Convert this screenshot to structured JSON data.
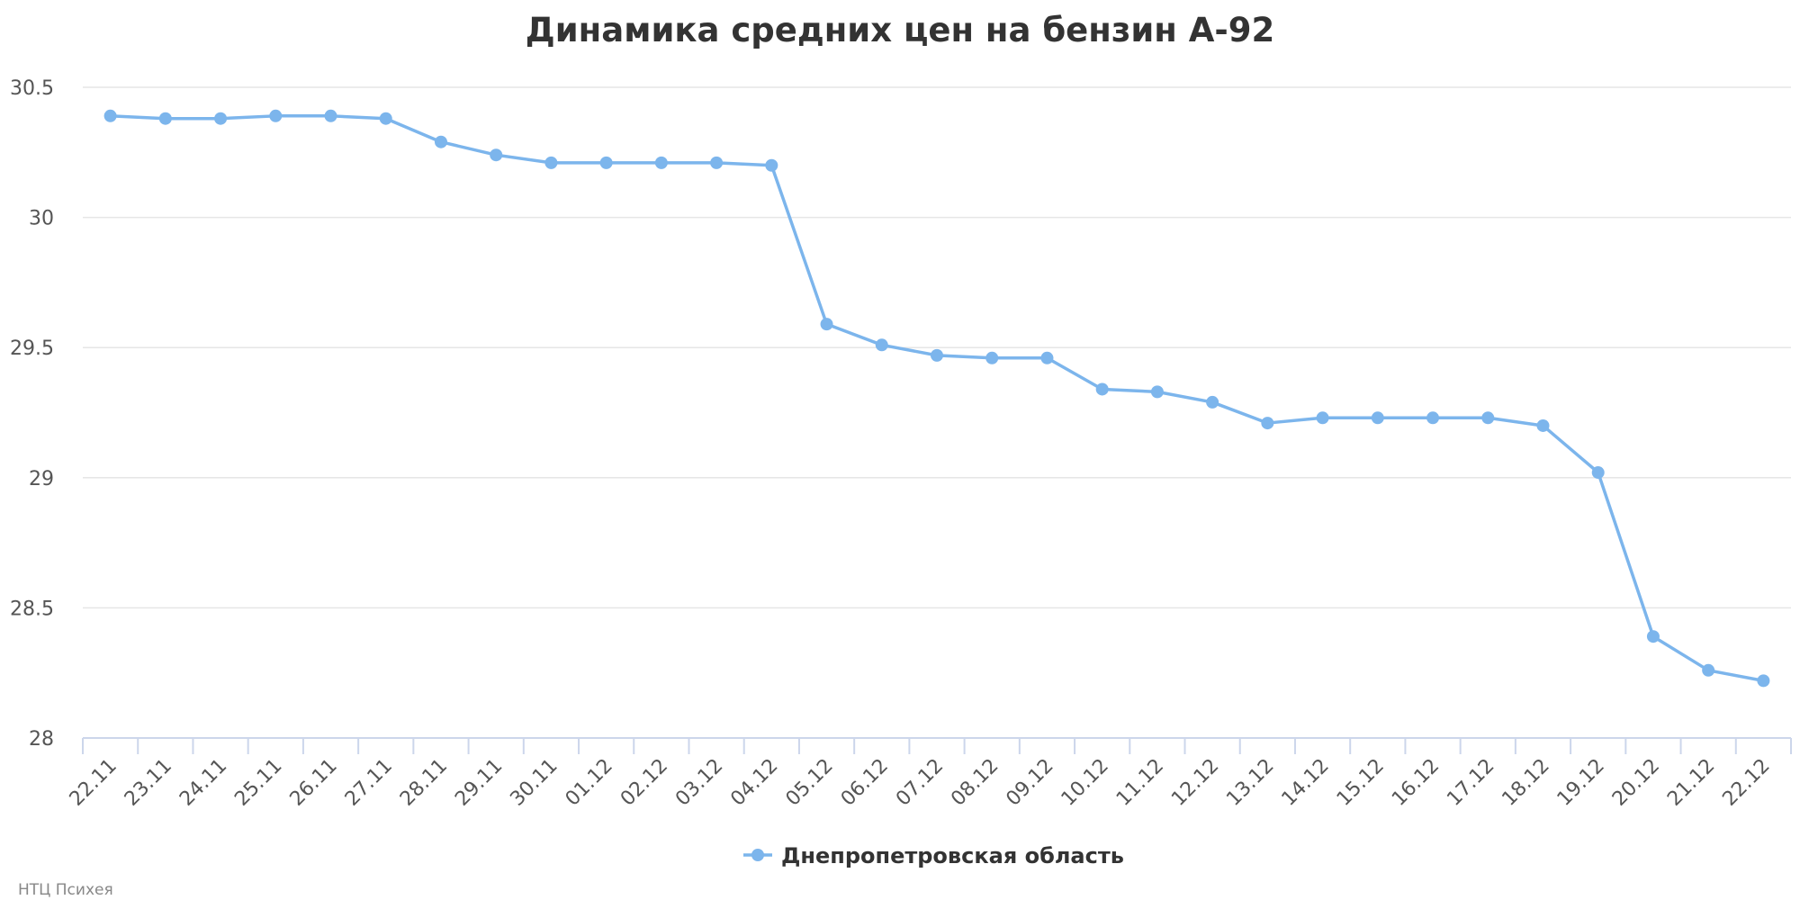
{
  "chart_data": {
    "type": "line",
    "title": "Динамика средних цен на бензин А-92",
    "xlabel": "",
    "ylabel": "",
    "categories": [
      "22.11",
      "23.11",
      "24.11",
      "25.11",
      "26.11",
      "27.11",
      "28.11",
      "29.11",
      "30.11",
      "01.12",
      "02.12",
      "03.12",
      "04.12",
      "05.12",
      "06.12",
      "07.12",
      "08.12",
      "09.12",
      "10.12",
      "11.12",
      "12.12",
      "13.12",
      "14.12",
      "15.12",
      "16.12",
      "17.12",
      "18.12",
      "19.12",
      "20.12",
      "21.12",
      "22.12"
    ],
    "series": [
      {
        "name": "Днепропетровская область",
        "color": "#7cb5ec",
        "values": [
          30.39,
          30.38,
          30.38,
          30.39,
          30.39,
          30.38,
          30.29,
          30.24,
          30.21,
          30.21,
          30.21,
          30.21,
          30.2,
          29.59,
          29.51,
          29.47,
          29.46,
          29.46,
          29.34,
          29.33,
          29.29,
          29.21,
          29.23,
          29.23,
          29.23,
          29.23,
          29.2,
          29.02,
          28.39,
          28.26,
          28.22
        ]
      }
    ],
    "ylim": [
      28,
      30.5
    ],
    "yticks": [
      28,
      28.5,
      29,
      29.5,
      30,
      30.5
    ],
    "ytick_labels": [
      "28",
      "28.5",
      "29",
      "29.5",
      "30",
      "30.5"
    ],
    "grid": true,
    "legend_position": "bottom-center",
    "credits": "НТЦ Психея",
    "colors": {
      "grid": "#e6e6e6",
      "axis": "#ccd6eb",
      "text": "#333333",
      "tick_text": "#555555"
    }
  }
}
